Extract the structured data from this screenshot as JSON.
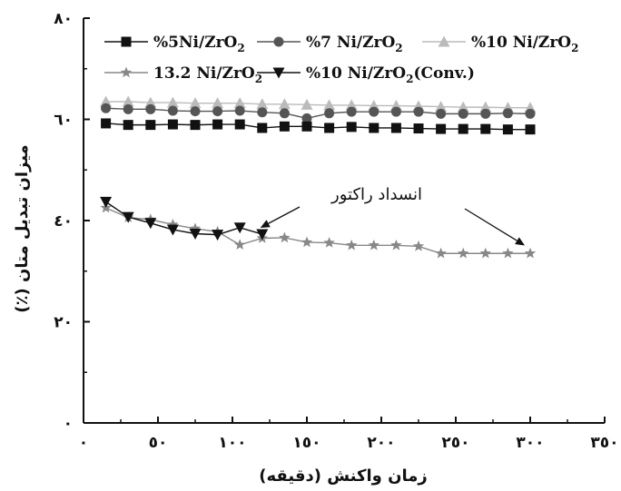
{
  "chart_data": {
    "type": "line",
    "xlabel": "زمان واکنش (دقیقه)",
    "ylabel": "میزان تبدیل متان (٪)",
    "xlim": [
      0,
      350
    ],
    "ylim": [
      0,
      80
    ],
    "x_ticks": [
      0,
      50,
      100,
      150,
      200,
      250,
      300,
      350
    ],
    "x_tick_labels": [
      "٠",
      "٥٠",
      "١٠٠",
      "١٥٠",
      "٢٠٠",
      "٢٥٠",
      "٣٠٠",
      "٣٥٠"
    ],
    "y_ticks": [
      0,
      20,
      40,
      60,
      80
    ],
    "y_tick_labels": [
      "٠",
      "٢٠",
      "٤٠",
      "٦٠",
      "٨٠"
    ],
    "grid": false,
    "legend_position": "top",
    "series": [
      {
        "name": "%5Ni/ZrO2",
        "marker": "square",
        "color": "#111111",
        "x": [
          15,
          30,
          45,
          60,
          75,
          90,
          105,
          120,
          135,
          150,
          165,
          180,
          195,
          210,
          225,
          240,
          255,
          270,
          285,
          300
        ],
        "y": [
          59.2,
          58.9,
          58.9,
          59.0,
          58.9,
          59.0,
          59.0,
          58.3,
          58.6,
          58.6,
          58.3,
          58.5,
          58.3,
          58.3,
          58.2,
          58.1,
          58.1,
          58.1,
          58.0,
          58.0
        ]
      },
      {
        "name": "%7 Ni/ZrO2",
        "marker": "circle",
        "color": "#555555",
        "x": [
          15,
          30,
          45,
          60,
          75,
          90,
          105,
          120,
          135,
          150,
          165,
          180,
          195,
          210,
          225,
          240,
          255,
          270,
          285,
          300
        ],
        "y": [
          62.2,
          62.0,
          62.0,
          61.7,
          61.6,
          61.6,
          61.7,
          61.4,
          61.2,
          60.2,
          61.2,
          61.5,
          61.5,
          61.5,
          61.5,
          61.1,
          61.1,
          61.1,
          61.2,
          61.1
        ]
      },
      {
        "name": "%10 Ni/ZrO2",
        "marker": "triangle-up",
        "color": "#bbbbbb",
        "x": [
          15,
          30,
          45,
          60,
          75,
          90,
          105,
          120,
          135,
          150,
          165,
          180,
          195,
          210,
          225,
          240,
          255,
          270,
          285,
          300
        ],
        "y": [
          63.5,
          63.5,
          63.3,
          63.3,
          63.2,
          63.2,
          63.2,
          63.0,
          63.0,
          62.9,
          62.8,
          62.8,
          62.7,
          62.7,
          62.6,
          62.5,
          62.4,
          62.4,
          62.3,
          62.3
        ]
      },
      {
        "name": "13.2 Ni/ZrO2",
        "marker": "star",
        "color": "#888888",
        "x": [
          15,
          30,
          45,
          60,
          75,
          90,
          105,
          120,
          135,
          150,
          165,
          180,
          195,
          210,
          225,
          240,
          255,
          270,
          285,
          300
        ],
        "y": [
          42.5,
          40.6,
          40.2,
          39.2,
          38.4,
          37.8,
          35.2,
          36.5,
          36.6,
          35.7,
          35.6,
          35.1,
          35.1,
          35.1,
          34.9,
          33.5,
          33.5,
          33.5,
          33.5,
          33.5
        ]
      },
      {
        "name": "%10 Ni/ZrO2(Conv.)",
        "marker": "triangle-down",
        "color": "#111111",
        "x": [
          15,
          30,
          45,
          60,
          75,
          90,
          105,
          120
        ],
        "y": [
          43.7,
          40.7,
          39.5,
          38.2,
          37.4,
          37.2,
          38.6,
          37.3
        ]
      }
    ],
    "annotations": [
      {
        "text": "انسداد راکتور",
        "arrow_targets": [
          [
            120,
            37.5
          ],
          [
            300,
            34.0
          ]
        ]
      }
    ]
  }
}
